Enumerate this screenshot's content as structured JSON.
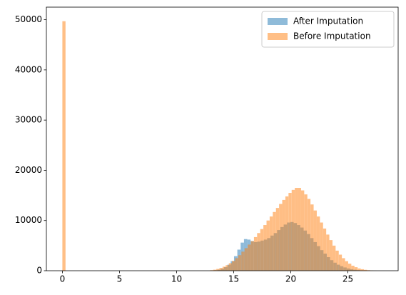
{
  "chart_data": {
    "type": "histogram",
    "xlim": [
      -1.4,
      29.4
    ],
    "xticks": [
      0,
      5,
      10,
      15,
      20,
      25
    ],
    "ylim": [
      0,
      52500
    ],
    "yticks": [
      0,
      10000,
      20000,
      30000,
      40000,
      50000
    ],
    "grid": false,
    "legend": "upper right",
    "opacity": 0.5,
    "series": [
      {
        "name": "After Imputation",
        "color": "#1f77b4",
        "bins": [
          13,
          13.29,
          13.58,
          13.87,
          14.16,
          14.45,
          14.74,
          15.03,
          15.32,
          15.61,
          15.9,
          16.19,
          16.48,
          16.77,
          17.06,
          17.35,
          17.64,
          17.93,
          18.22,
          18.51,
          18.8,
          19.09,
          19.38,
          19.67,
          19.96,
          20.25,
          20.54,
          20.83,
          21.12,
          21.41,
          21.7,
          21.99,
          22.28,
          22.57,
          22.86,
          23.15,
          23.44,
          23.73,
          24.02,
          24.31,
          24.6,
          24.89,
          25.18,
          25.47,
          25.76,
          26.05,
          26.34,
          26.63,
          26.92,
          27.21,
          27.5
        ],
        "values": [
          50,
          100,
          200,
          400,
          700,
          1200,
          1900,
          2900,
          4200,
          5600,
          6300,
          6200,
          5900,
          5700,
          5800,
          6000,
          6200,
          6500,
          7000,
          7500,
          8100,
          8700,
          9200,
          9600,
          9700,
          9500,
          9100,
          8600,
          8000,
          7300,
          6500,
          5700,
          4900,
          4100,
          3400,
          2700,
          2100,
          1600,
          1200,
          900,
          650,
          450,
          300,
          200,
          120,
          70,
          40,
          20,
          10,
          5
        ]
      },
      {
        "name": "Before Imputation",
        "color": "#ff7f0e",
        "bins": [
          0,
          0.275,
          12.925,
          13.2,
          13.475,
          13.75,
          14.025,
          14.3,
          14.575,
          14.85,
          15.125,
          15.4,
          15.675,
          15.95,
          16.225,
          16.5,
          16.775,
          17.05,
          17.325,
          17.6,
          17.875,
          18.15,
          18.425,
          18.7,
          18.975,
          19.25,
          19.525,
          19.8,
          20.075,
          20.35,
          20.625,
          20.9,
          21.175,
          21.45,
          21.725,
          22,
          22.275,
          22.55,
          22.825,
          23.1,
          23.375,
          23.65,
          23.925,
          24.2,
          24.475,
          24.75,
          25.025,
          25.3,
          25.575,
          25.85,
          26.125,
          26.4,
          26.675,
          26.95,
          27.225,
          27.5
        ],
        "values": [
          49700,
          0,
          100,
          200,
          350,
          550,
          800,
          1100,
          1500,
          1950,
          2500,
          3100,
          3800,
          4500,
          5200,
          5900,
          6700,
          7500,
          8300,
          9100,
          10000,
          10800,
          11700,
          12500,
          13300,
          14100,
          14800,
          15500,
          16100,
          16500,
          16500,
          16000,
          15200,
          14300,
          13200,
          12000,
          10800,
          9600,
          8400,
          7200,
          6100,
          5000,
          4000,
          3200,
          2500,
          1900,
          1400,
          1000,
          700,
          450,
          300,
          180,
          100,
          50,
          20
        ]
      }
    ]
  }
}
